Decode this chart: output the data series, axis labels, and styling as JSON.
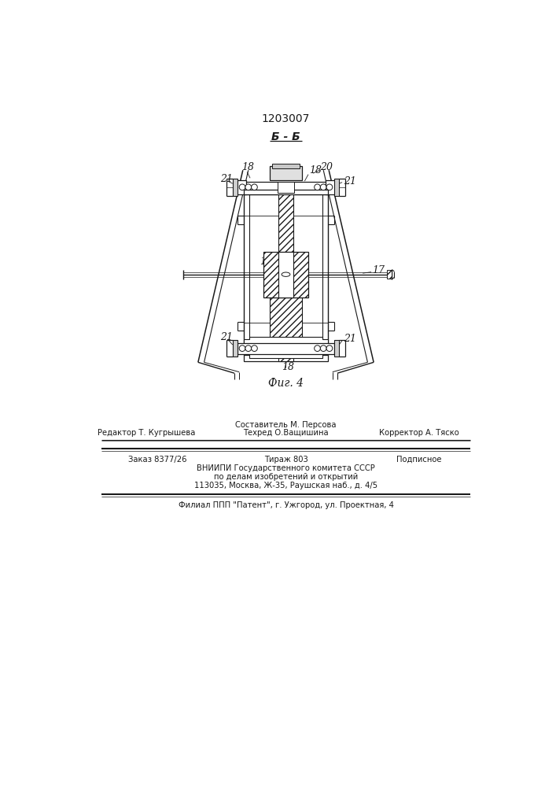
{
  "patent_number": "1203007",
  "section_label": "Б - Б",
  "fig_label": "Фиг. 4",
  "footer": {
    "line0_center": "Составитель М. Персова",
    "line1_left": "Редактор Т. Кугрышева",
    "line1_center": "Техред О.Ващишина",
    "line1_right": "Корректор А. Тяско",
    "line2_left": "Заказ 8377/26",
    "line2_center": "Тираж 803",
    "line2_right": "Подписное",
    "line3": "ВНИИПИ Государственного комитета СССР",
    "line4": "по делам изобретений и открытий",
    "line5": "113035, Москва, Ж-35, Раушская наб., д. 4/5",
    "line6": "Филиал ППП \"Патент\", г. Ужгород, ул. Проектная, 4"
  },
  "bg_color": "#ffffff",
  "line_color": "#1a1a1a"
}
